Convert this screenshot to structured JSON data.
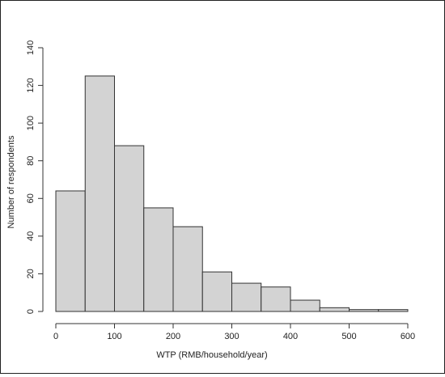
{
  "chart_data": {
    "type": "bar",
    "subtype": "histogram",
    "title": "",
    "xlabel": "WTP (RMB/household/year)",
    "ylabel": "Number of respondents",
    "bin_edges": [
      0,
      50,
      100,
      150,
      200,
      250,
      300,
      350,
      400,
      450,
      500,
      550,
      600
    ],
    "values": [
      64,
      125,
      88,
      55,
      45,
      21,
      15,
      13,
      6,
      2,
      1,
      1
    ],
    "xlim": [
      0,
      600
    ],
    "ylim": [
      0,
      140
    ],
    "x_ticks": [
      0,
      100,
      200,
      300,
      400,
      500,
      600
    ],
    "y_ticks": [
      0,
      20,
      40,
      60,
      80,
      100,
      120,
      140
    ],
    "grid": false,
    "legend": "none",
    "bar_fill": "#d3d3d3",
    "bar_stroke": "#333333"
  }
}
